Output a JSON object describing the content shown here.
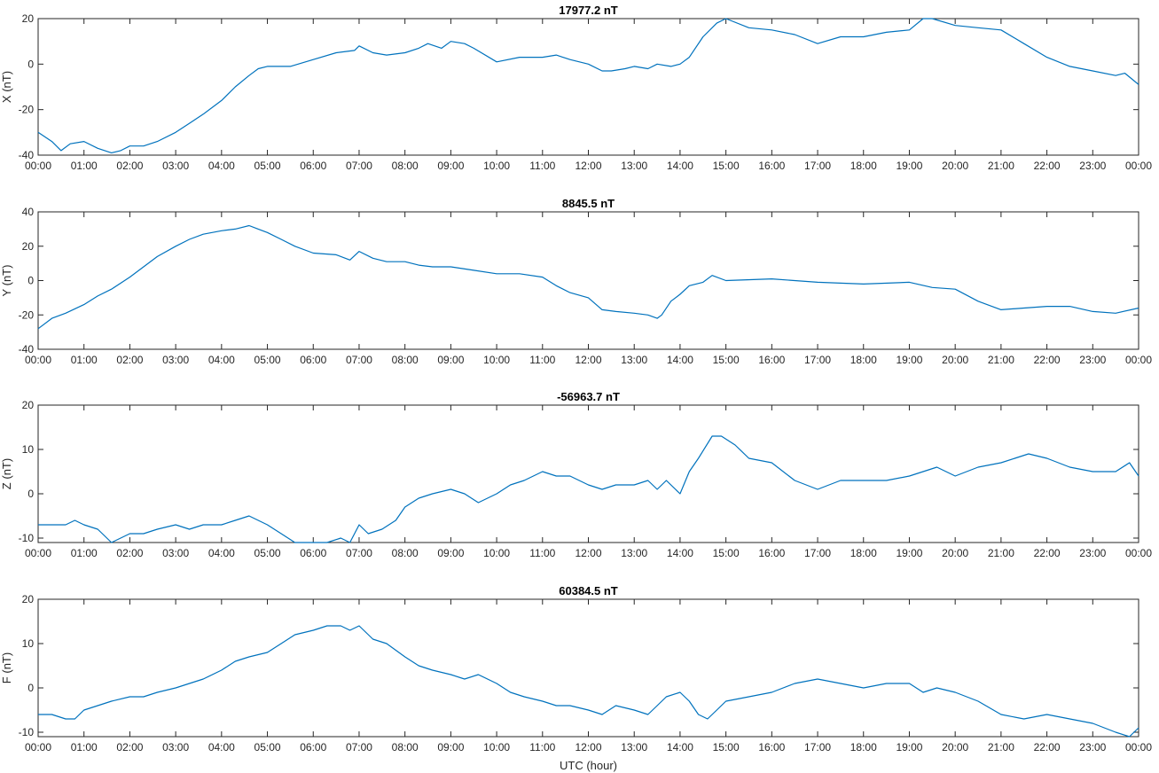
{
  "chart_data": [
    {
      "type": "line",
      "title": "17977.2 nT",
      "ylabel": "X (nT)",
      "xlabel": "",
      "ylim": [
        -40,
        20
      ],
      "yticks": [
        -40,
        -20,
        0,
        20
      ],
      "grid": false,
      "x_ticks": [
        "00:00",
        "01:00",
        "02:00",
        "03:00",
        "04:00",
        "05:00",
        "06:00",
        "07:00",
        "08:00",
        "09:00",
        "10:00",
        "11:00",
        "12:00",
        "13:00",
        "14:00",
        "15:00",
        "16:00",
        "17:00",
        "18:00",
        "19:00",
        "20:00",
        "21:00",
        "22:00",
        "23:00",
        "00:00"
      ],
      "series": [
        {
          "color": "#0072BD",
          "x": [
            0,
            0.3,
            0.5,
            0.7,
            1.0,
            1.3,
            1.6,
            1.8,
            2.0,
            2.3,
            2.6,
            3.0,
            3.3,
            3.6,
            4.0,
            4.3,
            4.6,
            4.8,
            5.0,
            5.5,
            6.0,
            6.5,
            6.9,
            7.0,
            7.3,
            7.6,
            8.0,
            8.3,
            8.5,
            8.8,
            9.0,
            9.3,
            9.5,
            10.0,
            10.5,
            11.0,
            11.3,
            11.6,
            12.0,
            12.3,
            12.5,
            12.8,
            13.0,
            13.3,
            13.5,
            13.8,
            14.0,
            14.2,
            14.5,
            14.8,
            15.0,
            15.5,
            16.0,
            16.5,
            17.0,
            17.5,
            18.0,
            18.5,
            19.0,
            19.3,
            19.5,
            20.0,
            20.5,
            21.0,
            21.5,
            22.0,
            22.5,
            23.0,
            23.5,
            23.7,
            24.0
          ],
          "y": [
            -30,
            -34,
            -38,
            -35,
            -34,
            -37,
            -39,
            -38,
            -36,
            -36,
            -34,
            -30,
            -26,
            -22,
            -16,
            -10,
            -5,
            -2,
            -1,
            -1,
            2,
            5,
            6,
            8,
            5,
            4,
            5,
            7,
            9,
            7,
            10,
            9,
            7,
            1,
            3,
            3,
            4,
            2,
            0,
            -3,
            -3,
            -2,
            -1,
            -2,
            0,
            -1,
            0,
            3,
            12,
            18,
            20,
            16,
            15,
            13,
            9,
            12,
            12,
            14,
            15,
            20,
            20,
            17,
            16,
            15,
            9,
            3,
            -1,
            -3,
            -5,
            -4,
            -9
          ]
        }
      ]
    },
    {
      "type": "line",
      "title": "8845.5 nT",
      "ylabel": "Y (nT)",
      "xlabel": "",
      "ylim": [
        -40,
        40
      ],
      "yticks": [
        -40,
        -20,
        0,
        20,
        40
      ],
      "grid": false,
      "x_ticks": [
        "00:00",
        "01:00",
        "02:00",
        "03:00",
        "04:00",
        "05:00",
        "06:00",
        "07:00",
        "08:00",
        "09:00",
        "10:00",
        "11:00",
        "12:00",
        "13:00",
        "14:00",
        "15:00",
        "16:00",
        "17:00",
        "18:00",
        "19:00",
        "20:00",
        "21:00",
        "22:00",
        "23:00",
        "00:00"
      ],
      "series": [
        {
          "color": "#0072BD",
          "x": [
            0,
            0.3,
            0.6,
            1.0,
            1.3,
            1.6,
            2.0,
            2.3,
            2.6,
            3.0,
            3.3,
            3.6,
            4.0,
            4.3,
            4.6,
            4.8,
            5.0,
            5.3,
            5.6,
            6.0,
            6.5,
            6.8,
            7.0,
            7.3,
            7.6,
            8.0,
            8.3,
            8.6,
            9.0,
            9.5,
            10.0,
            10.5,
            11.0,
            11.3,
            11.6,
            12.0,
            12.3,
            12.6,
            13.0,
            13.3,
            13.5,
            13.6,
            13.8,
            14.0,
            14.2,
            14.5,
            14.7,
            15.0,
            16.0,
            17.0,
            18.0,
            19.0,
            19.5,
            20.0,
            20.5,
            21.0,
            21.5,
            22.0,
            22.5,
            23.0,
            23.5,
            24.0
          ],
          "y": [
            -28,
            -22,
            -19,
            -14,
            -9,
            -5,
            2,
            8,
            14,
            20,
            24,
            27,
            29,
            30,
            32,
            30,
            28,
            24,
            20,
            16,
            15,
            12,
            17,
            13,
            11,
            11,
            9,
            8,
            8,
            6,
            4,
            4,
            2,
            -3,
            -7,
            -10,
            -17,
            -18,
            -19,
            -20,
            -22,
            -20,
            -12,
            -8,
            -3,
            -1,
            3,
            0,
            1,
            -1,
            -2,
            -1,
            -4,
            -5,
            -12,
            -17,
            -16,
            -15,
            -15,
            -18,
            -19,
            -16
          ]
        }
      ]
    },
    {
      "type": "line",
      "title": "-56963.7 nT",
      "ylabel": "Z (nT)",
      "xlabel": "",
      "ylim": [
        -11,
        20
      ],
      "yticks": [
        -10,
        0,
        10,
        20
      ],
      "grid": false,
      "x_ticks": [
        "00:00",
        "01:00",
        "02:00",
        "03:00",
        "04:00",
        "05:00",
        "06:00",
        "07:00",
        "08:00",
        "09:00",
        "10:00",
        "11:00",
        "12:00",
        "13:00",
        "14:00",
        "15:00",
        "16:00",
        "17:00",
        "18:00",
        "19:00",
        "20:00",
        "21:00",
        "22:00",
        "23:00",
        "00:00"
      ],
      "series": [
        {
          "color": "#0072BD",
          "x": [
            0,
            0.3,
            0.6,
            0.8,
            1.0,
            1.3,
            1.6,
            2.0,
            2.3,
            2.6,
            3.0,
            3.3,
            3.6,
            4.0,
            4.3,
            4.6,
            5.0,
            5.3,
            5.6,
            6.0,
            6.3,
            6.6,
            6.8,
            7.0,
            7.2,
            7.5,
            7.8,
            8.0,
            8.3,
            8.6,
            9.0,
            9.3,
            9.6,
            10.0,
            10.3,
            10.6,
            11.0,
            11.3,
            11.6,
            12.0,
            12.3,
            12.6,
            13.0,
            13.3,
            13.5,
            13.7,
            14.0,
            14.2,
            14.4,
            14.7,
            14.9,
            15.2,
            15.5,
            16.0,
            16.5,
            17.0,
            17.5,
            18.0,
            18.5,
            19.0,
            19.3,
            19.6,
            20.0,
            20.5,
            21.0,
            21.3,
            21.6,
            22.0,
            22.5,
            23.0,
            23.5,
            23.8,
            24.0
          ],
          "y": [
            -7,
            -7,
            -7,
            -6,
            -7,
            -8,
            -11,
            -9,
            -9,
            -8,
            -7,
            -8,
            -7,
            -7,
            -6,
            -5,
            -7,
            -9,
            -11,
            -11,
            -11,
            -10,
            -11,
            -7,
            -9,
            -8,
            -6,
            -3,
            -1,
            0,
            1,
            0,
            -2,
            0,
            2,
            3,
            5,
            4,
            4,
            2,
            1,
            2,
            2,
            3,
            1,
            3,
            0,
            5,
            8,
            13,
            13,
            11,
            8,
            7,
            3,
            1,
            3,
            3,
            3,
            4,
            5,
            6,
            4,
            6,
            7,
            8,
            9,
            8,
            6,
            5,
            5,
            7,
            4
          ]
        }
      ]
    },
    {
      "type": "line",
      "title": "60384.5 nT",
      "ylabel": "F (nT)",
      "xlabel": "UTC (hour)",
      "ylim": [
        -11,
        20
      ],
      "yticks": [
        -10,
        0,
        10,
        20
      ],
      "grid": false,
      "x_ticks": [
        "00:00",
        "01:00",
        "02:00",
        "03:00",
        "04:00",
        "05:00",
        "06:00",
        "07:00",
        "08:00",
        "09:00",
        "10:00",
        "11:00",
        "12:00",
        "13:00",
        "14:00",
        "15:00",
        "16:00",
        "17:00",
        "18:00",
        "19:00",
        "20:00",
        "21:00",
        "22:00",
        "23:00",
        "00:00"
      ],
      "series": [
        {
          "color": "#0072BD",
          "x": [
            0,
            0.3,
            0.6,
            0.8,
            1.0,
            1.3,
            1.6,
            2.0,
            2.3,
            2.6,
            3.0,
            3.3,
            3.6,
            4.0,
            4.3,
            4.6,
            5.0,
            5.3,
            5.6,
            6.0,
            6.3,
            6.6,
            6.8,
            7.0,
            7.3,
            7.6,
            8.0,
            8.3,
            8.6,
            9.0,
            9.3,
            9.6,
            10.0,
            10.3,
            10.6,
            11.0,
            11.3,
            11.6,
            12.0,
            12.3,
            12.6,
            13.0,
            13.3,
            13.5,
            13.7,
            14.0,
            14.2,
            14.4,
            14.6,
            14.8,
            15.0,
            15.5,
            16.0,
            16.5,
            17.0,
            17.5,
            18.0,
            18.5,
            19.0,
            19.3,
            19.6,
            20.0,
            20.5,
            21.0,
            21.5,
            22.0,
            22.5,
            23.0,
            23.5,
            23.8,
            24.0
          ],
          "y": [
            -6,
            -6,
            -7,
            -7,
            -5,
            -4,
            -3,
            -2,
            -2,
            -1,
            0,
            1,
            2,
            4,
            6,
            7,
            8,
            10,
            12,
            13,
            14,
            14,
            13,
            14,
            11,
            10,
            7,
            5,
            4,
            3,
            2,
            3,
            1,
            -1,
            -2,
            -3,
            -4,
            -4,
            -5,
            -6,
            -4,
            -5,
            -6,
            -4,
            -2,
            -1,
            -3,
            -6,
            -7,
            -5,
            -3,
            -2,
            -1,
            1,
            2,
            1,
            0,
            1,
            1,
            -1,
            0,
            -1,
            -3,
            -6,
            -7,
            -6,
            -7,
            -8,
            -10,
            -11,
            -9
          ]
        }
      ]
    }
  ]
}
